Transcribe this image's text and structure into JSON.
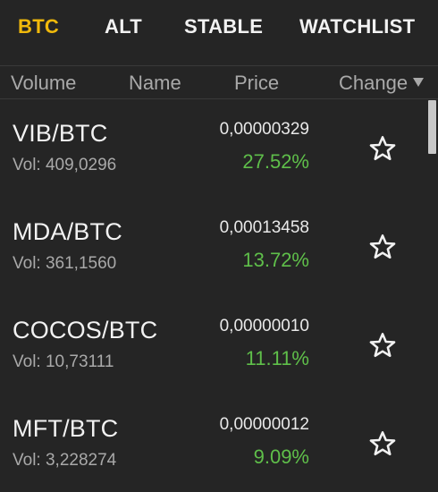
{
  "tabs": [
    {
      "label": "BTC",
      "active": true
    },
    {
      "label": "ALT",
      "active": false
    },
    {
      "label": "STABLE",
      "active": false
    },
    {
      "label": "WATCHLIST",
      "active": false
    }
  ],
  "columns": {
    "volume": "Volume",
    "name": "Name",
    "price": "Price",
    "change": "Change"
  },
  "rows": [
    {
      "pair": "VIB/BTC",
      "volume": "Vol: 409,0296",
      "price": "0,00000329",
      "change": "27.52%"
    },
    {
      "pair": "MDA/BTC",
      "volume": "Vol: 361,1560",
      "price": "0,00013458",
      "change": "13.72%"
    },
    {
      "pair": "COCOS/BTC",
      "volume": "Vol: 10,73111",
      "price": "0,00000010",
      "change": "11.11%"
    },
    {
      "pair": "MFT/BTC",
      "volume": "Vol: 3,228274",
      "price": "0,00000012",
      "change": "9.09%"
    }
  ],
  "icons": {
    "favorite": "star-outline-icon",
    "sort": "triangle-down-icon"
  },
  "colors": {
    "background": "#252525",
    "active_tab": "#f0b90b",
    "positive_change": "#5fbf4a",
    "muted_text": "#a9a9a9"
  }
}
